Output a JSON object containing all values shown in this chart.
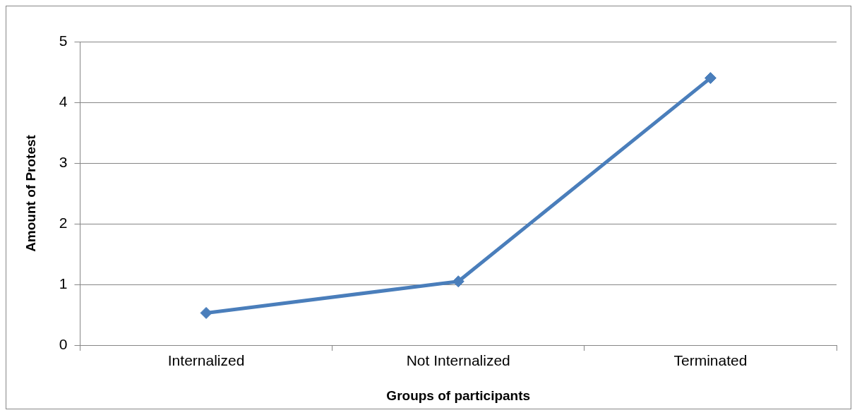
{
  "chart_data": {
    "type": "line",
    "xlabel": "Groups of participants",
    "ylabel": "Amount of Protest",
    "categories": [
      "Internalized",
      "Not Internalized",
      "Terminated"
    ],
    "series": [
      {
        "color": "#4a7ebb",
        "values": [
          0.53,
          1.05,
          4.4
        ]
      }
    ],
    "ylim": [
      0,
      5
    ],
    "yticks": [
      0,
      1,
      2,
      3,
      4,
      5
    ],
    "grid": "y",
    "legend": false,
    "marker": "diamond",
    "line_style": "solid"
  }
}
